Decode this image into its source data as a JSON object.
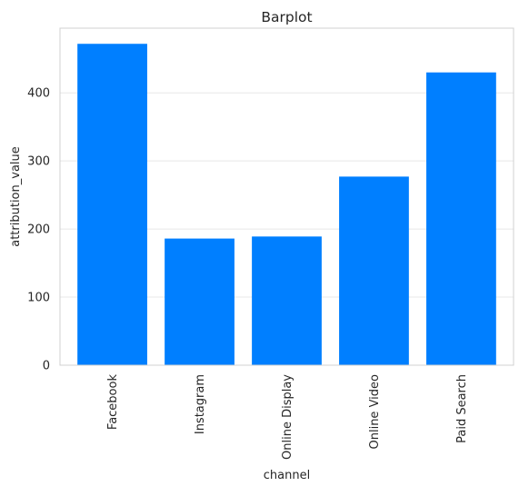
{
  "chart_data": {
    "type": "bar",
    "title": "Barplot",
    "xlabel": "channel",
    "ylabel": "attribution_value",
    "categories": [
      "Facebook",
      "Instagram",
      "Online Display",
      "Online Video",
      "Paid Search"
    ],
    "values": [
      472,
      186,
      189,
      277,
      430
    ],
    "ylim": [
      0,
      495
    ],
    "yticks": [
      0,
      100,
      200,
      300,
      400
    ],
    "ytick_labels": [
      "0",
      "100",
      "200",
      "300",
      "400"
    ],
    "grid": true,
    "legend": false,
    "colors": {
      "bar": "#007fff",
      "grid": "#e8e8e8",
      "spine": "#d0d0d0",
      "text": "#262626"
    }
  }
}
